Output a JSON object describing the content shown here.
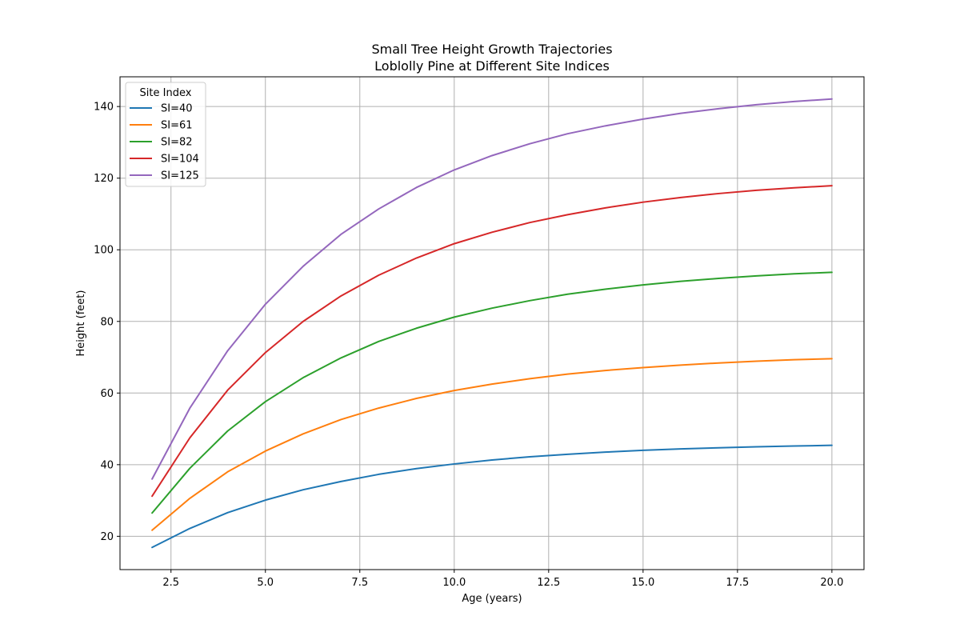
{
  "chart_data": {
    "type": "line",
    "title": "Small Tree Height Growth Trajectories",
    "subtitle": "Loblolly Pine at Different Site Indices",
    "xlabel": "Age (years)",
    "ylabel": "Height (feet)",
    "xlim": [
      1.15,
      20.85
    ],
    "ylim": [
      10.7,
      148.3
    ],
    "x_ticks": [
      2.5,
      5.0,
      7.5,
      10.0,
      12.5,
      15.0,
      17.5,
      20.0
    ],
    "x_tick_labels": [
      "2.5",
      "5.0",
      "7.5",
      "10.0",
      "12.5",
      "15.0",
      "17.5",
      "20.0"
    ],
    "y_ticks": [
      20,
      40,
      60,
      80,
      100,
      120,
      140
    ],
    "y_tick_labels": [
      "20",
      "40",
      "60",
      "80",
      "100",
      "120",
      "140"
    ],
    "grid": true,
    "legend_title": "Site Index",
    "legend_position": "top-left",
    "x": [
      2,
      3,
      4,
      5,
      6,
      7,
      8,
      9,
      10,
      11,
      12,
      13,
      14,
      15,
      16,
      17,
      18,
      19,
      20
    ],
    "series": [
      {
        "name": "SI=40",
        "color": "#1f77b4",
        "values": [
          16.9,
          22.2,
          26.6,
          30.1,
          33.0,
          35.3,
          37.3,
          38.9,
          40.2,
          41.3,
          42.2,
          42.9,
          43.5,
          44.0,
          44.4,
          44.7,
          45.0,
          45.2,
          45.4
        ]
      },
      {
        "name": "SI=61",
        "color": "#ff7f0e",
        "values": [
          21.7,
          30.6,
          38.0,
          43.8,
          48.6,
          52.6,
          55.8,
          58.5,
          60.7,
          62.5,
          64.0,
          65.3,
          66.3,
          67.1,
          67.8,
          68.4,
          68.9,
          69.3,
          69.6
        ]
      },
      {
        "name": "SI=82",
        "color": "#2ca02c",
        "values": [
          26.5,
          39.0,
          49.4,
          57.6,
          64.3,
          69.8,
          74.4,
          78.1,
          81.2,
          83.7,
          85.8,
          87.6,
          89.0,
          90.2,
          91.2,
          92.0,
          92.7,
          93.3,
          93.7
        ]
      },
      {
        "name": "SI=104",
        "color": "#d62728",
        "values": [
          31.2,
          47.5,
          60.8,
          71.3,
          80.0,
          87.1,
          92.9,
          97.7,
          101.7,
          104.9,
          107.6,
          109.8,
          111.7,
          113.3,
          114.6,
          115.7,
          116.6,
          117.3,
          117.9
        ]
      },
      {
        "name": "SI=125",
        "color": "#9467bd",
        "values": [
          36.0,
          55.8,
          71.8,
          84.8,
          95.4,
          104.3,
          111.4,
          117.4,
          122.3,
          126.3,
          129.6,
          132.4,
          134.6,
          136.5,
          138.1,
          139.4,
          140.5,
          141.4,
          142.1
        ]
      }
    ]
  }
}
